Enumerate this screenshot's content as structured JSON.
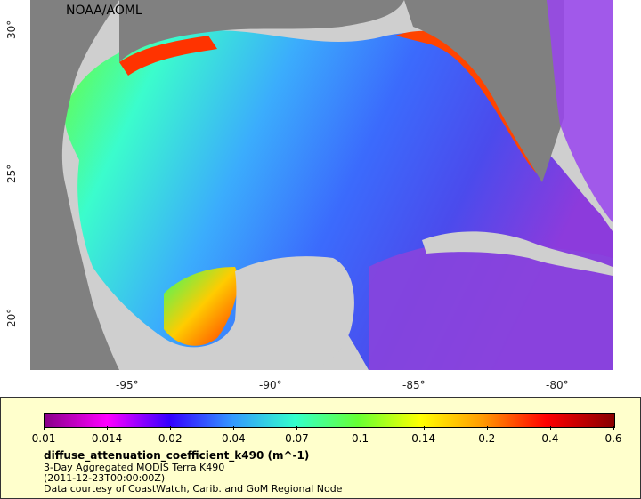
{
  "map": {
    "credit": "NOAA/AOML",
    "y_ticks": [
      "30°",
      "25°",
      "20°"
    ],
    "x_ticks": [
      "-95°",
      "-90°",
      "-85°",
      "-80°"
    ]
  },
  "colors": {
    "land": "#808080",
    "ocean_high": "#ff3300",
    "ocean_mid": "#33ccff",
    "ocean_low": "#3333ff",
    "nodata": "#d0d0d0",
    "legend_bg": "#ffffcc"
  },
  "legend": {
    "ticks": [
      "0.01",
      "0.014",
      "0.02",
      "0.04",
      "0.07",
      "0.1",
      "0.14",
      "0.2",
      "0.4",
      "0.6"
    ],
    "variable": "diffuse_attenuation_coefficient_k490 (m^-1)",
    "description": "3-Day Aggregated MODIS Terra K490",
    "time": "(2011-12-23T00:00:00Z)",
    "credit": "Data courtesy of CoastWatch, Carib. and GoM Regional Node"
  }
}
